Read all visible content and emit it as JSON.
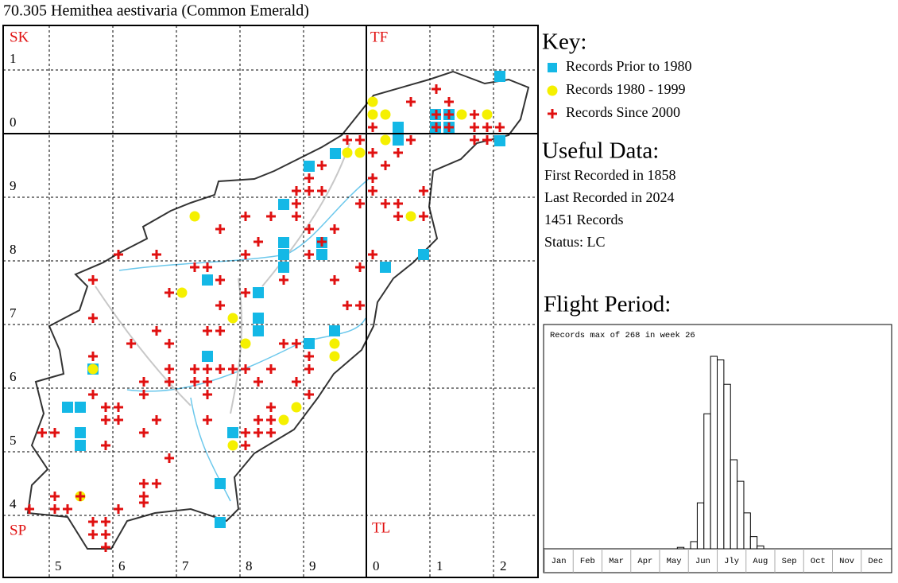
{
  "title": "70.305 Hemithea aestivaria (Common Emerald)",
  "map": {
    "grid_letters": [
      "SK",
      "TF",
      "SP",
      "TL"
    ],
    "row_labels": [
      "1",
      "0",
      "9",
      "8",
      "7",
      "6",
      "5",
      "4"
    ],
    "column_labels": [
      "5",
      "6",
      "7",
      "8",
      "9",
      "0",
      "1",
      "2"
    ]
  },
  "key": {
    "title": "Key:",
    "entries": [
      "Records Prior to 1980",
      "Records 1980 - 1999",
      "Records Since 2000"
    ]
  },
  "useful_data": {
    "title": "Useful Data:",
    "lines": [
      "First Recorded in 1858",
      "Last Recorded in 2024",
      "1451 Records",
      "Status: LC"
    ]
  },
  "flight_period": {
    "title": "Flight Period:",
    "note": "Records max of 268 in week 26",
    "months": [
      "Jan",
      "Feb",
      "Mar",
      "Apr",
      "May",
      "Jun",
      "Jly",
      "Aug",
      "Sep",
      "Oct",
      "Nov",
      "Dec"
    ],
    "weekly_records": [
      0,
      0,
      0,
      0,
      0,
      0,
      0,
      0,
      0,
      0,
      0,
      0,
      0,
      0,
      0,
      0,
      0,
      0,
      0,
      0,
      2,
      0,
      10,
      64,
      188,
      268,
      263,
      229,
      124,
      94,
      50,
      17,
      4,
      0,
      0,
      0,
      0,
      0,
      0,
      0,
      0,
      0,
      0,
      0,
      0,
      0,
      0,
      0,
      0,
      0,
      0,
      0
    ]
  }
}
